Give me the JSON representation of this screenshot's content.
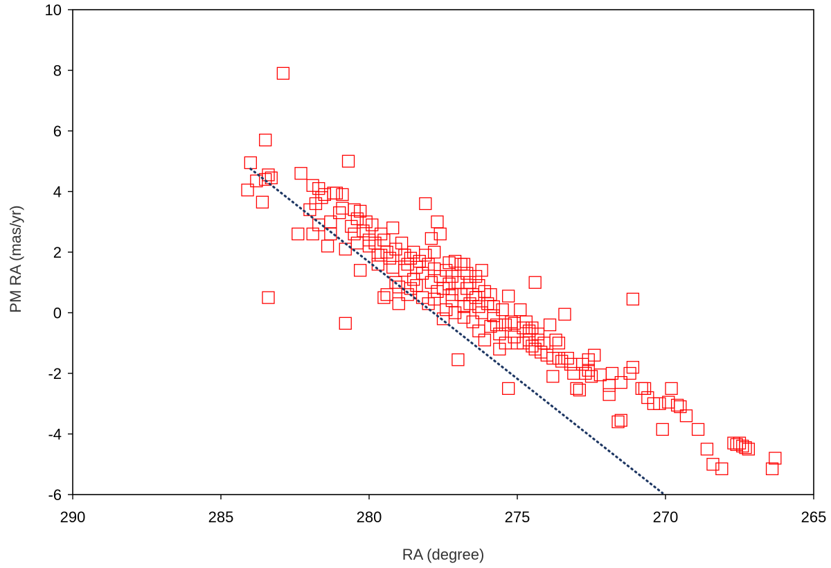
{
  "chart_data": {
    "type": "scatter",
    "xlabel": "RA (degree)",
    "ylabel": "PM RA (mas/yr)",
    "xlim": [
      290,
      265
    ],
    "ylim": [
      -6,
      10
    ],
    "x_reversed": true,
    "x_ticks": [
      "290",
      "285",
      "280",
      "275",
      "270",
      "265"
    ],
    "y_ticks": [
      "10",
      "8",
      "6",
      "4",
      "2",
      "0",
      "-2",
      "-4",
      "-6"
    ],
    "grid": false,
    "legend": "none",
    "marker": "open-square",
    "colors": {
      "marker": "#ff0000",
      "trendline": "#1f3864"
    },
    "trendline": {
      "style": "dotted",
      "x": [
        284.0,
        270.1
      ],
      "y": [
        4.75,
        -5.95
      ]
    },
    "series": [
      {
        "points": [
          [
            284.0,
            4.95
          ],
          [
            284.1,
            4.05
          ],
          [
            283.5,
            5.7
          ],
          [
            283.6,
            3.65
          ],
          [
            283.5,
            4.4
          ],
          [
            283.4,
            4.55
          ],
          [
            283.3,
            4.45
          ],
          [
            283.4,
            0.5
          ],
          [
            282.9,
            7.9
          ],
          [
            282.4,
            2.6
          ],
          [
            282.3,
            4.6
          ],
          [
            281.9,
            4.2
          ],
          [
            281.8,
            3.6
          ],
          [
            281.7,
            4.1
          ],
          [
            281.6,
            3.8
          ],
          [
            281.9,
            2.6
          ],
          [
            281.7,
            2.9
          ],
          [
            281.5,
            3.9
          ],
          [
            281.4,
            2.2
          ],
          [
            281.3,
            2.6
          ],
          [
            281.2,
            3.95
          ],
          [
            281.1,
            3.95
          ],
          [
            280.9,
            3.9
          ],
          [
            281.0,
            3.3
          ],
          [
            280.9,
            3.45
          ],
          [
            280.8,
            2.1
          ],
          [
            280.7,
            5.0
          ],
          [
            280.8,
            -0.35
          ],
          [
            280.6,
            2.85
          ],
          [
            280.5,
            3.4
          ],
          [
            280.5,
            2.6
          ],
          [
            280.4,
            3.1
          ],
          [
            280.3,
            3.35
          ],
          [
            280.2,
            2.7
          ],
          [
            280.1,
            3.0
          ],
          [
            280.3,
            1.4
          ],
          [
            280.0,
            2.4
          ],
          [
            280.0,
            2.2
          ],
          [
            279.9,
            2.9
          ],
          [
            279.8,
            2.3
          ],
          [
            279.7,
            1.9
          ],
          [
            279.7,
            1.6
          ],
          [
            279.6,
            2.6
          ],
          [
            279.5,
            2.4
          ],
          [
            279.5,
            0.5
          ],
          [
            279.4,
            0.6
          ],
          [
            279.4,
            2.0
          ],
          [
            279.3,
            1.8
          ],
          [
            279.2,
            2.8
          ],
          [
            279.2,
            1.5
          ],
          [
            279.1,
            2.1
          ],
          [
            279.0,
            0.85
          ],
          [
            279.0,
            0.3
          ],
          [
            278.9,
            2.3
          ],
          [
            278.8,
            1.9
          ],
          [
            278.8,
            1.4
          ],
          [
            278.7,
            1.6
          ],
          [
            278.7,
            0.6
          ],
          [
            278.6,
            1.8
          ],
          [
            278.5,
            2.0
          ],
          [
            278.5,
            1.1
          ],
          [
            278.4,
            1.5
          ],
          [
            278.4,
            0.9
          ],
          [
            278.3,
            1.7
          ],
          [
            278.2,
            1.3
          ],
          [
            278.2,
            0.5
          ],
          [
            278.1,
            1.9
          ],
          [
            278.1,
            3.6
          ],
          [
            278.0,
            1.6
          ],
          [
            278.0,
            0.3
          ],
          [
            277.9,
            2.45
          ],
          [
            277.9,
            1.0
          ],
          [
            277.8,
            1.45
          ],
          [
            277.8,
            0.45
          ],
          [
            277.7,
            3.0
          ],
          [
            277.7,
            0.7
          ],
          [
            277.6,
            2.6
          ],
          [
            277.6,
            1.2
          ],
          [
            277.5,
            -0.2
          ],
          [
            277.5,
            0.8
          ],
          [
            277.4,
            1.4
          ],
          [
            277.4,
            0.1
          ],
          [
            277.3,
            1.65
          ],
          [
            277.3,
            0.95
          ],
          [
            277.2,
            0.4
          ],
          [
            277.2,
            1.2
          ],
          [
            277.1,
            1.7
          ],
          [
            277.1,
            0.0
          ],
          [
            277.0,
            1.0
          ],
          [
            277.0,
            -1.55
          ],
          [
            276.9,
            1.6
          ],
          [
            276.9,
            0.6
          ],
          [
            276.8,
            0.2
          ],
          [
            276.8,
            -0.15
          ],
          [
            276.7,
            1.3
          ],
          [
            276.7,
            0.8
          ],
          [
            276.6,
            1.0
          ],
          [
            276.6,
            0.3
          ],
          [
            276.5,
            0.6
          ],
          [
            276.5,
            -0.3
          ],
          [
            276.4,
            1.2
          ],
          [
            276.4,
            0.5
          ],
          [
            276.3,
            0.2
          ],
          [
            276.3,
            -0.6
          ],
          [
            276.2,
            1.4
          ],
          [
            276.2,
            0.0
          ],
          [
            276.1,
            -0.9
          ],
          [
            276.1,
            0.7
          ],
          [
            276.0,
            0.3
          ],
          [
            275.9,
            -0.45
          ],
          [
            275.9,
            0.6
          ],
          [
            275.8,
            -0.1
          ],
          [
            275.7,
            -0.4
          ],
          [
            275.6,
            -1.2
          ],
          [
            275.6,
            -0.7
          ],
          [
            275.5,
            0.1
          ],
          [
            275.4,
            -0.4
          ],
          [
            275.4,
            -1.0
          ],
          [
            275.3,
            0.55
          ],
          [
            275.3,
            -2.5
          ],
          [
            275.2,
            -0.3
          ],
          [
            275.1,
            -0.8
          ],
          [
            275.0,
            -1.0
          ],
          [
            274.9,
            0.1
          ],
          [
            274.8,
            -0.5
          ],
          [
            274.8,
            -1.0
          ],
          [
            274.7,
            -0.3
          ],
          [
            274.6,
            -0.6
          ],
          [
            274.6,
            -0.9
          ],
          [
            274.5,
            -0.5
          ],
          [
            274.4,
            -1.2
          ],
          [
            274.4,
            1.0
          ],
          [
            274.3,
            -0.9
          ],
          [
            274.3,
            -0.7
          ],
          [
            274.2,
            -1.3
          ],
          [
            274.1,
            -1.0
          ],
          [
            274.0,
            -1.4
          ],
          [
            273.9,
            -0.4
          ],
          [
            273.8,
            -1.5
          ],
          [
            273.8,
            -2.1
          ],
          [
            273.7,
            -0.9
          ],
          [
            273.6,
            -1.5
          ],
          [
            273.5,
            -1.6
          ],
          [
            273.4,
            -0.05
          ],
          [
            273.3,
            -1.5
          ],
          [
            273.2,
            -1.7
          ],
          [
            273.1,
            -2.0
          ],
          [
            273.0,
            -2.5
          ],
          [
            272.9,
            -2.55
          ],
          [
            272.8,
            -1.7
          ],
          [
            272.7,
            -2.0
          ],
          [
            272.6,
            -1.9
          ],
          [
            272.5,
            -2.1
          ],
          [
            272.4,
            -1.4
          ],
          [
            272.2,
            -2.05
          ],
          [
            271.9,
            -2.4
          ],
          [
            271.8,
            -2.0
          ],
          [
            271.6,
            -3.6
          ],
          [
            271.5,
            -3.55
          ],
          [
            271.5,
            -2.3
          ],
          [
            271.2,
            -2.0
          ],
          [
            271.1,
            -1.8
          ],
          [
            271.1,
            0.45
          ],
          [
            270.8,
            -2.5
          ],
          [
            270.6,
            -2.8
          ],
          [
            270.7,
            -2.5
          ],
          [
            270.4,
            -3.0
          ],
          [
            270.2,
            -3.0
          ],
          [
            270.1,
            -3.85
          ],
          [
            269.9,
            -2.95
          ],
          [
            269.8,
            -2.5
          ],
          [
            269.6,
            -3.05
          ],
          [
            269.5,
            -3.1
          ],
          [
            269.3,
            -3.4
          ],
          [
            268.9,
            -3.85
          ],
          [
            268.6,
            -4.5
          ],
          [
            268.4,
            -5.0
          ],
          [
            268.1,
            -5.15
          ],
          [
            267.7,
            -4.3
          ],
          [
            267.6,
            -4.35
          ],
          [
            267.5,
            -4.3
          ],
          [
            267.4,
            -4.4
          ],
          [
            267.3,
            -4.45
          ],
          [
            267.2,
            -4.5
          ],
          [
            266.4,
            -5.15
          ],
          [
            266.3,
            -4.8
          ],
          [
            283.8,
            4.35
          ],
          [
            282.0,
            3.4
          ],
          [
            281.3,
            3.0
          ],
          [
            280.4,
            2.3
          ],
          [
            279.6,
            1.9
          ],
          [
            279.1,
            1.0
          ],
          [
            278.6,
            0.8
          ],
          [
            277.8,
            2.0
          ],
          [
            277.2,
            0.6
          ],
          [
            276.8,
            1.6
          ],
          [
            276.3,
            0.9
          ],
          [
            275.8,
            0.2
          ],
          [
            275.1,
            -0.35
          ],
          [
            274.5,
            -1.1
          ],
          [
            273.6,
            -1.0
          ],
          [
            272.6,
            -1.55
          ],
          [
            271.9,
            -2.7
          ]
        ]
      }
    ]
  }
}
